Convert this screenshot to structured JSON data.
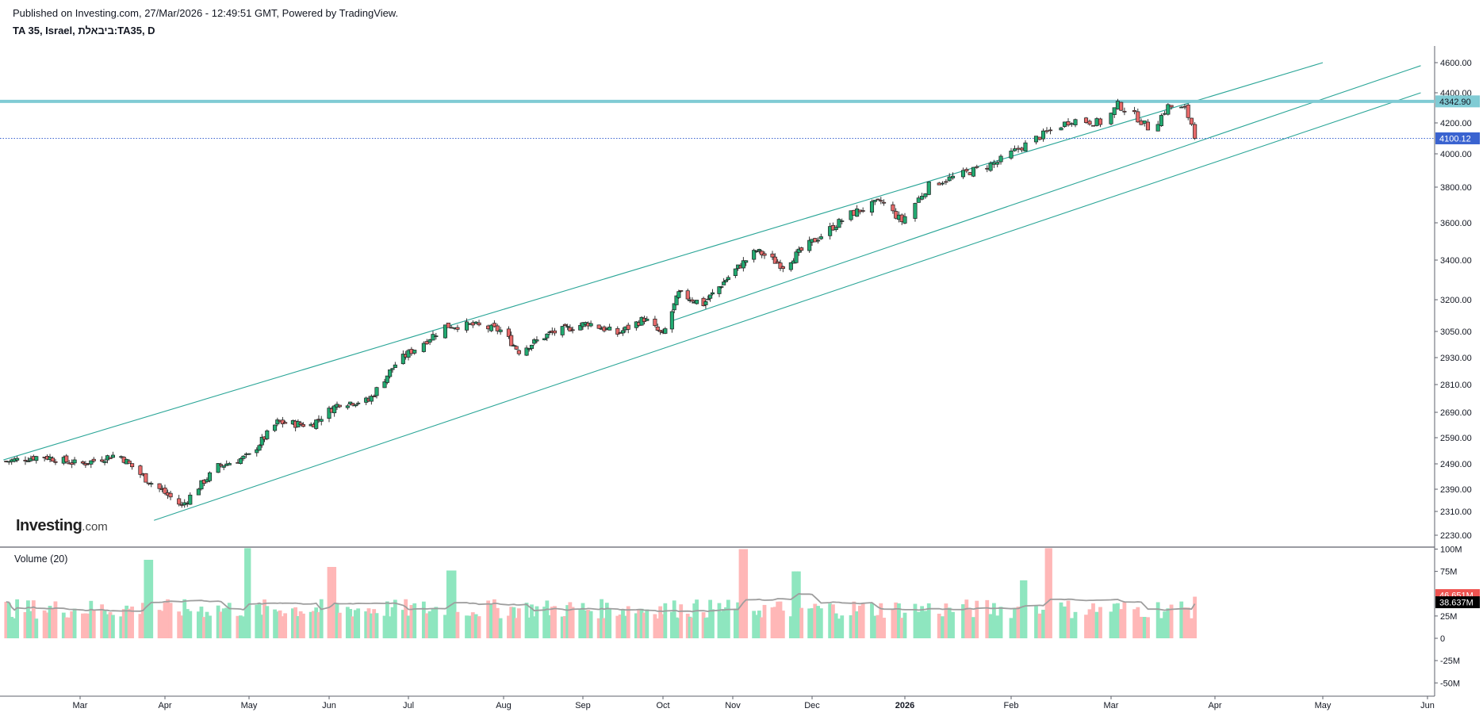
{
  "header": {
    "published": "Published on Investing.com, 27/Mar/2026 - 12:49:51 GMT, Powered by TradingView.",
    "symbol": "TA 35, Israel, ביבאלת:TA35, D"
  },
  "logo": {
    "brand": "Investing",
    "suffix": ".com"
  },
  "volume_panel": {
    "title": "Volume (20)"
  },
  "colors": {
    "up": "#26a69a",
    "up_body": "#22ab72",
    "down": "#ef5350",
    "down_body": "#e86a6a",
    "vol_up": "#8ee6bf",
    "vol_down": "#ffb7b7",
    "channel": "#2aa597",
    "resistance": "#80cbd4",
    "last_price": "#3a63d0",
    "vol_ma": "#9e9e9e"
  },
  "chart_data": {
    "type": "candlestick",
    "price_axis": {
      "ticks": [
        4600,
        4400,
        4200,
        4000,
        3800,
        3600,
        3400,
        3200,
        3050,
        2930,
        2810,
        2690,
        2590,
        2490,
        2390,
        2310,
        2230
      ],
      "tick_labels": [
        "4600.00",
        "4400.00",
        "4200.00",
        "4000.00",
        "3800.00",
        "3600.00",
        "3400.00",
        "3200.00",
        "3050.00",
        "2930.00",
        "2810.00",
        "2690.00",
        "2590.00",
        "2490.00",
        "2390.00",
        "2310.00",
        "2230.00"
      ]
    },
    "volume_axis": {
      "ticks": [
        100,
        75,
        25,
        0,
        -25,
        -50
      ],
      "tick_labels": [
        "100M",
        "75M",
        "25M",
        "0",
        "-25M",
        "-50M"
      ]
    },
    "time_axis": {
      "labels": [
        {
          "label": "Mar",
          "date": "2025-03-01"
        },
        {
          "label": "Apr",
          "date": "2025-04-01"
        },
        {
          "label": "May",
          "date": "2025-05-01"
        },
        {
          "label": "Jun",
          "date": "2025-06-01"
        },
        {
          "label": "Jul",
          "date": "2025-07-01"
        },
        {
          "label": "Aug",
          "date": "2025-08-01"
        },
        {
          "label": "Sep",
          "date": "2025-09-01"
        },
        {
          "label": "Oct",
          "date": "2025-10-01"
        },
        {
          "label": "Nov",
          "date": "2025-11-01"
        },
        {
          "label": "Dec",
          "date": "2025-12-01"
        },
        {
          "label": "2026",
          "date": "2026-01-01",
          "bold": true
        },
        {
          "label": "Feb",
          "date": "2026-02-01"
        },
        {
          "label": "Mar",
          "date": "2026-03-01"
        },
        {
          "label": "Apr",
          "date": "2026-04-01"
        },
        {
          "label": "May",
          "date": "2026-05-01"
        },
        {
          "label": "Jun",
          "date": "2026-06-01"
        }
      ]
    },
    "price_anchors": [
      {
        "date": "2025-02-01",
        "close": 2498
      },
      {
        "date": "2025-02-15",
        "close": 2520
      },
      {
        "date": "2025-03-01",
        "close": 2488
      },
      {
        "date": "2025-03-15",
        "close": 2528
      },
      {
        "date": "2025-03-25",
        "close": 2430
      },
      {
        "date": "2025-04-07",
        "close": 2330
      },
      {
        "date": "2025-04-20",
        "close": 2480
      },
      {
        "date": "2025-05-01",
        "close": 2520
      },
      {
        "date": "2025-05-12",
        "close": 2650
      },
      {
        "date": "2025-05-25",
        "close": 2640
      },
      {
        "date": "2025-06-05",
        "close": 2730
      },
      {
        "date": "2025-06-16",
        "close": 2740
      },
      {
        "date": "2025-06-26",
        "close": 2900
      },
      {
        "date": "2025-07-06",
        "close": 3000
      },
      {
        "date": "2025-07-13",
        "close": 3075
      },
      {
        "date": "2025-07-22",
        "close": 3080
      },
      {
        "date": "2025-07-31",
        "close": 3055
      },
      {
        "date": "2025-08-07",
        "close": 2960
      },
      {
        "date": "2025-08-19",
        "close": 3040
      },
      {
        "date": "2025-09-03",
        "close": 3090
      },
      {
        "date": "2025-09-14",
        "close": 3040
      },
      {
        "date": "2025-09-24",
        "close": 3110
      },
      {
        "date": "2025-10-01",
        "close": 3030
      },
      {
        "date": "2025-10-08",
        "close": 3230
      },
      {
        "date": "2025-10-19",
        "close": 3180
      },
      {
        "date": "2025-11-02",
        "close": 3350
      },
      {
        "date": "2025-11-10",
        "close": 3450
      },
      {
        "date": "2025-11-20",
        "close": 3370
      },
      {
        "date": "2025-12-03",
        "close": 3520
      },
      {
        "date": "2025-12-14",
        "close": 3650
      },
      {
        "date": "2025-12-24",
        "close": 3720
      },
      {
        "date": "2025-12-31",
        "close": 3610
      },
      {
        "date": "2026-01-08",
        "close": 3810
      },
      {
        "date": "2026-01-18",
        "close": 3880
      },
      {
        "date": "2026-01-28",
        "close": 3950
      },
      {
        "date": "2026-02-08",
        "close": 4100
      },
      {
        "date": "2026-02-18",
        "close": 4220
      },
      {
        "date": "2026-02-27",
        "close": 4200
      },
      {
        "date": "2026-03-03",
        "close": 4320
      },
      {
        "date": "2026-03-08",
        "close": 4250
      },
      {
        "date": "2026-03-13",
        "close": 4150
      },
      {
        "date": "2026-03-18",
        "close": 4310
      },
      {
        "date": "2026-03-23",
        "close": 4290
      },
      {
        "date": "2026-03-27",
        "close": 4100
      }
    ],
    "trend_channel": [
      {
        "from": {
          "date": "2025-02-01",
          "value": 2505
        },
        "to": {
          "date": "2026-05-01",
          "value": 4600
        }
      },
      {
        "from": {
          "date": "2025-10-05",
          "value": 3100
        },
        "to": {
          "date": "2026-05-30",
          "value": 4580
        }
      },
      {
        "from": {
          "date": "2025-03-28",
          "value": 2280
        },
        "to": {
          "date": "2026-05-30",
          "value": 4400
        }
      }
    ],
    "resistance": {
      "value": 4342.9,
      "label": "4342.90"
    },
    "last_price": {
      "value": 4100.12,
      "label": "4100.12"
    },
    "last_volume": {
      "value": 46.651,
      "label": "46.651M"
    },
    "volume_ma": {
      "value": 38.637,
      "label": "38.637M"
    },
    "volume_spikes": [
      {
        "date": "2025-05-01",
        "value": 105,
        "dir": "up"
      },
      {
        "date": "2025-03-26",
        "value": 88,
        "dir": "up"
      },
      {
        "date": "2025-06-02",
        "value": 80,
        "dir": "down"
      },
      {
        "date": "2025-11-05",
        "value": 100,
        "dir": "down"
      },
      {
        "date": "2026-02-12",
        "value": 102,
        "dir": "down"
      },
      {
        "date": "2025-07-15",
        "value": 76,
        "dir": "up"
      },
      {
        "date": "2025-11-25",
        "value": 75,
        "dir": "up"
      },
      {
        "date": "2026-02-05",
        "value": 65,
        "dir": "up"
      }
    ]
  }
}
